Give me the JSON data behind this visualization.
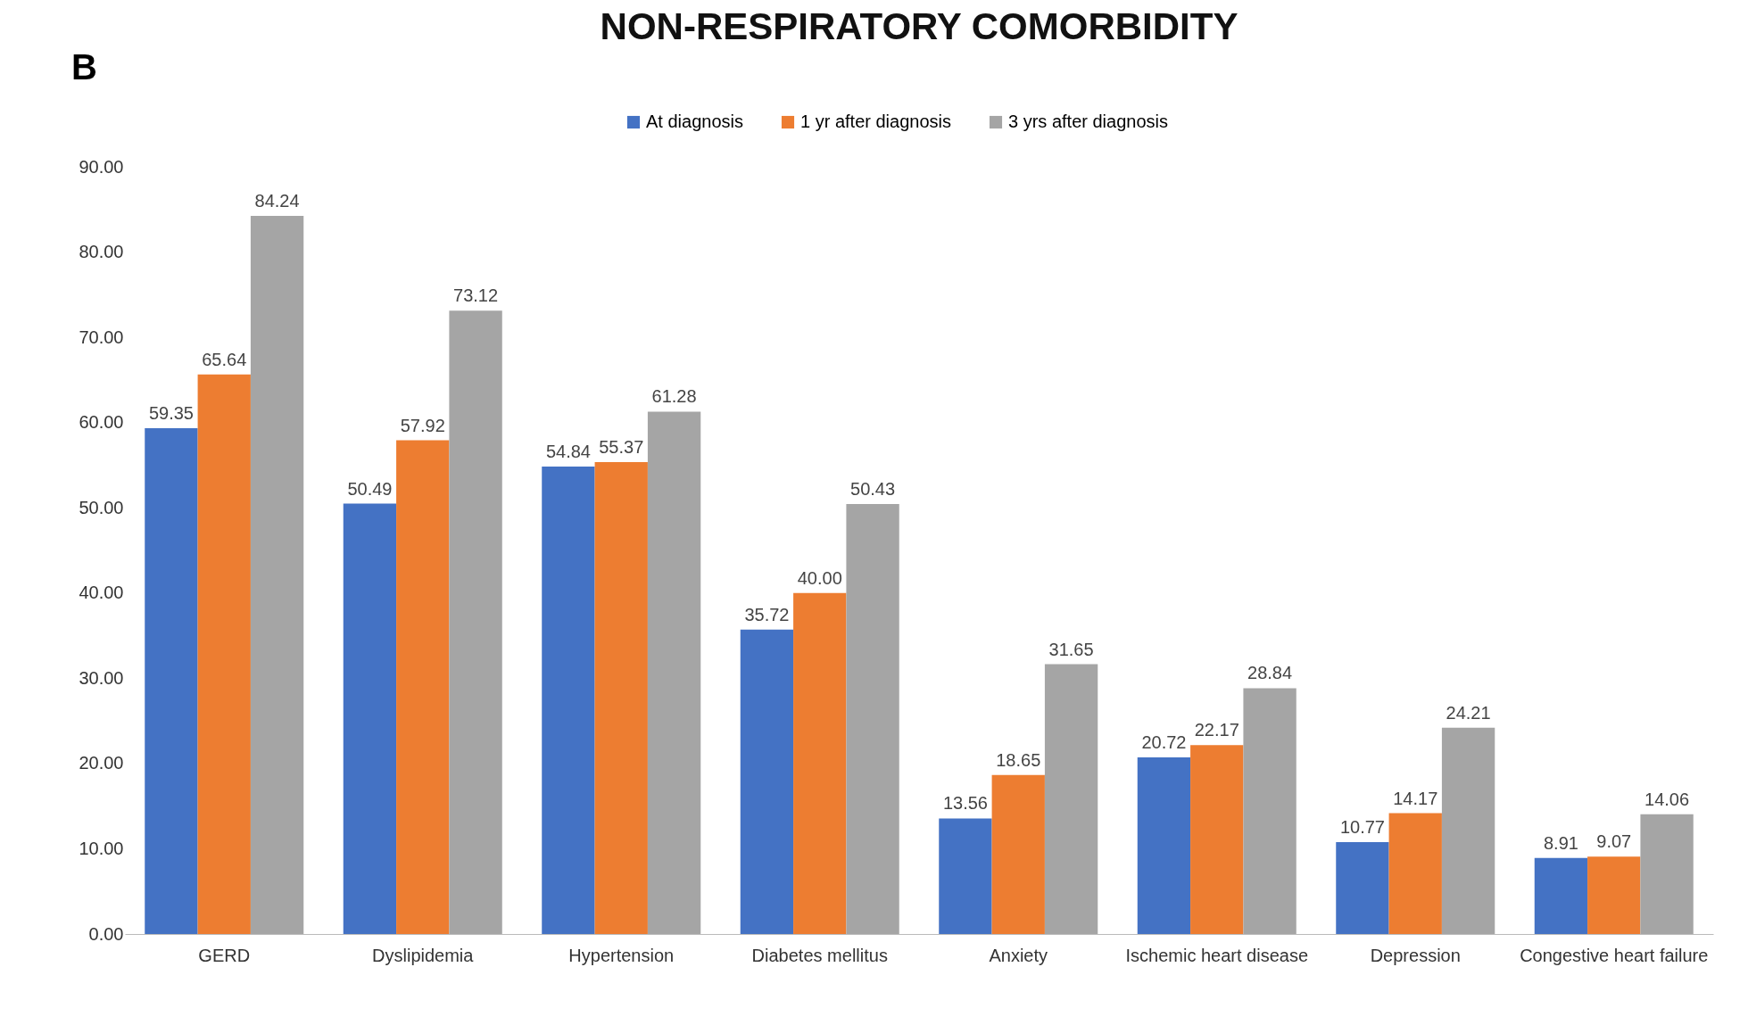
{
  "chart_data": {
    "type": "bar",
    "title": "NON-RESPIRATORY COMORBIDITY",
    "annotations": [
      "B"
    ],
    "categories": [
      "GERD",
      "Dyslipidemia",
      "Hypertension",
      "Diabetes mellitus",
      "Anxiety",
      "Ischemic heart disease",
      "Depression",
      "Congestive heart failure"
    ],
    "series": [
      {
        "name": "At diagnosis",
        "color": "#4472c4",
        "values": [
          59.35,
          50.49,
          54.84,
          35.72,
          13.56,
          20.72,
          10.77,
          8.91
        ]
      },
      {
        "name": "1 yr after diagnosis",
        "color": "#ed7d31",
        "values": [
          65.64,
          57.92,
          55.37,
          40.0,
          18.65,
          22.17,
          14.17,
          9.07
        ],
        "value_labels": [
          "65.64",
          "57.92",
          "55.37",
          "40.00",
          "18.65",
          "22.17",
          "14.17",
          "9.07"
        ]
      },
      {
        "name": "3 yrs after diagnosis",
        "color": "#a5a5a5",
        "values": [
          84.24,
          73.12,
          61.28,
          50.43,
          31.65,
          28.84,
          24.21,
          14.06
        ]
      }
    ],
    "ylim": [
      0,
      90
    ],
    "yticks": [
      {
        "value": 0,
        "label": "0.00"
      },
      {
        "value": 10,
        "label": "10.00"
      },
      {
        "value": 20,
        "label": "20.00"
      },
      {
        "value": 30,
        "label": "30.00"
      },
      {
        "value": 40,
        "label": "40.00"
      },
      {
        "value": 50,
        "label": "50.00"
      },
      {
        "value": 60,
        "label": "60.00"
      },
      {
        "value": 70,
        "label": "70.00"
      },
      {
        "value": 80,
        "label": "80.00"
      },
      {
        "value": 90,
        "label": "90.00"
      }
    ],
    "data_labels": true,
    "grid": false,
    "legend": "top"
  }
}
